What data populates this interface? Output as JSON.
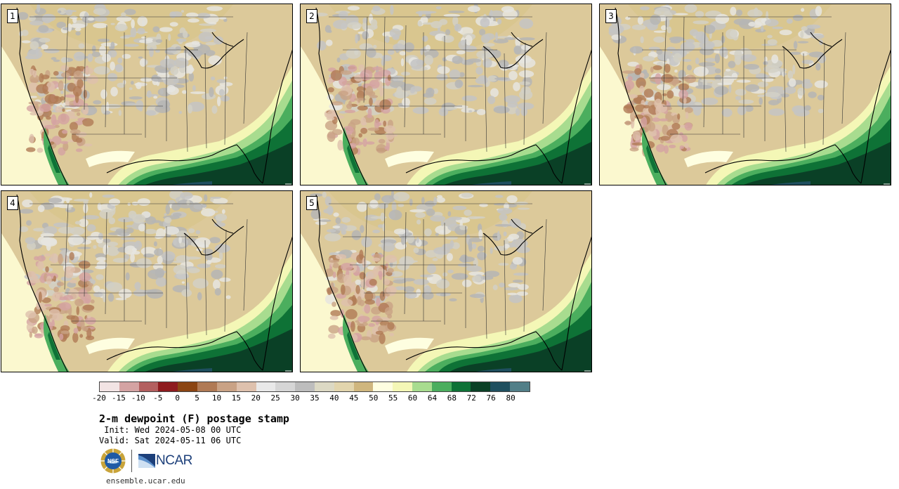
{
  "stamps": [
    {
      "label": "1",
      "variant": 0
    },
    {
      "label": "2",
      "variant": 1
    },
    {
      "label": "3",
      "variant": 2
    },
    {
      "label": "4",
      "variant": 3
    },
    {
      "label": "5",
      "variant": 4
    }
  ],
  "colorbar": {
    "tick_labels": [
      "-20",
      "-15",
      "-10",
      "-5",
      "0",
      "5",
      "10",
      "15",
      "20",
      "25",
      "30",
      "35",
      "40",
      "45",
      "50",
      "55",
      "60",
      "64",
      "68",
      "72",
      "76",
      "80"
    ],
    "colors": [
      "#f2e4e4",
      "#d4a3a3",
      "#b35f5f",
      "#8e1b1e",
      "#8b4513",
      "#b07a55",
      "#c9a285",
      "#dec1ad",
      "#e9e9e9",
      "#d6d6d6",
      "#bdbdbd",
      "#dcd9c4",
      "#e2d5ad",
      "#cfb67e",
      "#fefee0",
      "#f4f7b6",
      "#a8dc8f",
      "#4bae5e",
      "#0e7236",
      "#0a4026",
      "#1f4f5f",
      "#527f88"
    ]
  },
  "legend": {
    "title": "2-m dewpoint (F) postage stamp",
    "init": " Init: Wed 2024-05-08 00 UTC",
    "valid": "Valid: Sat 2024-05-11 06 UTC"
  },
  "logos": {
    "nsf": "NSF",
    "ncar": "NCAR"
  },
  "footer": {
    "url": "ensemble.ucar.edu"
  },
  "icons": {
    "nsf_logo": "nsf-globe-logo",
    "ncar_logo": "ncar-logo"
  }
}
